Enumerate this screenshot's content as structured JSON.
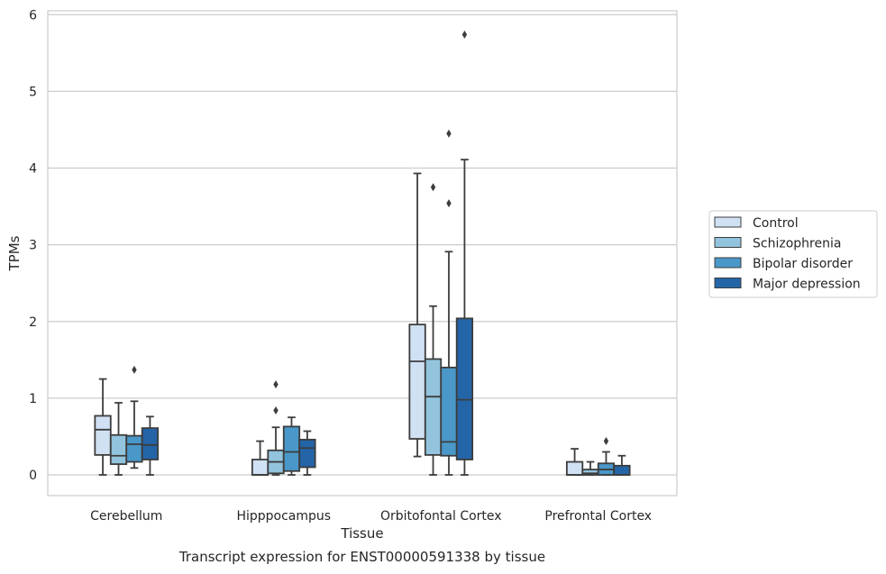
{
  "chart_data": {
    "type": "box",
    "title": "",
    "xlabel": "Tissue",
    "ylabel": "TPMs",
    "caption": "Transcript expression for ENST00000591338 by tissue",
    "ylim": [
      -0.27,
      6.05
    ],
    "yticks": [
      0,
      1,
      2,
      3,
      4,
      5,
      6
    ],
    "grid": "horizontal",
    "legend_position": "right",
    "categories": [
      "Cerebellum",
      "Hipppocampus",
      "Orbitofontal Cortex",
      "Prefrontal Cortex"
    ],
    "series": [
      {
        "name": "Control",
        "color": "#cfe1f2",
        "boxes": [
          {
            "whislo": 0.0,
            "q1": 0.26,
            "med": 0.59,
            "q3": 0.77,
            "whishi": 1.25,
            "fliers": []
          },
          {
            "whislo": 0.0,
            "q1": 0.0,
            "med": 0.0,
            "q3": 0.2,
            "whishi": 0.44,
            "fliers": []
          },
          {
            "whislo": 0.24,
            "q1": 0.47,
            "med": 1.48,
            "q3": 1.96,
            "whishi": 3.93,
            "fliers": []
          },
          {
            "whislo": 0.0,
            "q1": 0.0,
            "med": 0.0,
            "q3": 0.17,
            "whishi": 0.34,
            "fliers": []
          }
        ]
      },
      {
        "name": "Schizophrenia",
        "color": "#93c4de",
        "boxes": [
          {
            "whislo": 0.0,
            "q1": 0.14,
            "med": 0.25,
            "q3": 0.52,
            "whishi": 0.94,
            "fliers": []
          },
          {
            "whislo": 0.0,
            "q1": 0.02,
            "med": 0.17,
            "q3": 0.32,
            "whishi": 0.62,
            "fliers": [
              0.84,
              1.18
            ]
          },
          {
            "whislo": 0.0,
            "q1": 0.26,
            "med": 1.02,
            "q3": 1.51,
            "whishi": 2.2,
            "fliers": [
              3.75
            ]
          },
          {
            "whislo": 0.0,
            "q1": 0.0,
            "med": 0.02,
            "q3": 0.07,
            "whishi": 0.17,
            "fliers": []
          }
        ]
      },
      {
        "name": "Bipolar disorder",
        "color": "#4a98c9",
        "boxes": [
          {
            "whislo": 0.09,
            "q1": 0.17,
            "med": 0.4,
            "q3": 0.51,
            "whishi": 0.96,
            "fliers": [
              1.37
            ]
          },
          {
            "whislo": 0.0,
            "q1": 0.05,
            "med": 0.3,
            "q3": 0.63,
            "whishi": 0.75,
            "fliers": []
          },
          {
            "whislo": 0.0,
            "q1": 0.25,
            "med": 0.43,
            "q3": 1.4,
            "whishi": 2.91,
            "fliers": [
              3.54,
              4.45
            ]
          },
          {
            "whislo": 0.0,
            "q1": 0.0,
            "med": 0.07,
            "q3": 0.15,
            "whishi": 0.3,
            "fliers": [
              0.44
            ]
          }
        ]
      },
      {
        "name": "Major depression",
        "color": "#2465a8",
        "boxes": [
          {
            "whislo": 0.0,
            "q1": 0.2,
            "med": 0.39,
            "q3": 0.61,
            "whishi": 0.76,
            "fliers": []
          },
          {
            "whislo": 0.0,
            "q1": 0.1,
            "med": 0.35,
            "q3": 0.46,
            "whishi": 0.57,
            "fliers": []
          },
          {
            "whislo": 0.0,
            "q1": 0.2,
            "med": 0.98,
            "q3": 2.04,
            "whishi": 4.11,
            "fliers": [
              5.74
            ]
          },
          {
            "whislo": 0.0,
            "q1": 0.0,
            "med": 0.0,
            "q3": 0.12,
            "whishi": 0.25,
            "fliers": []
          }
        ]
      }
    ]
  }
}
